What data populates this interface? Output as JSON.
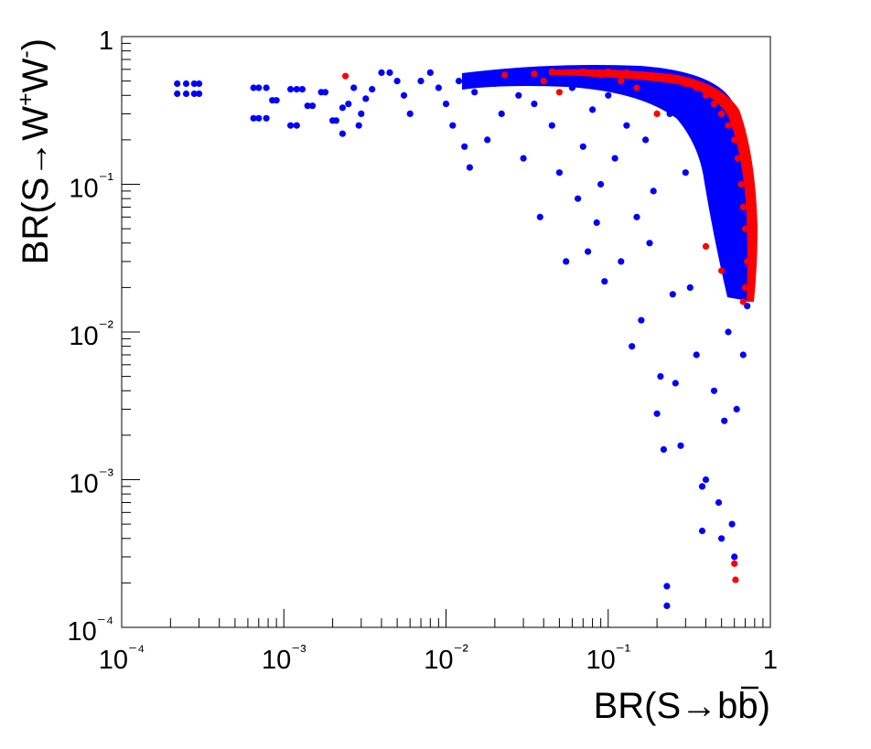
{
  "chart_data": {
    "type": "scatter",
    "xlabel": "BR(S→bb̄)",
    "ylabel": "BR(S→W⁺W⁻)",
    "x_scale": "log",
    "y_scale": "log",
    "xlim": [
      0.0001,
      1
    ],
    "ylim": [
      0.0001,
      1
    ],
    "x_ticks": [
      "10⁻⁴",
      "10⁻³",
      "10⁻²",
      "10⁻¹",
      "1"
    ],
    "y_ticks": [
      "10⁻⁴",
      "10⁻³",
      "10⁻²",
      "10⁻¹",
      "1"
    ],
    "grid": false,
    "colors": {
      "series_blue": "#0000ff",
      "series_red": "#ff0000"
    },
    "series": [
      {
        "color": "#0000ff",
        "points": [
          [
            0.00022,
            0.48
          ],
          [
            0.00025,
            0.48
          ],
          [
            0.00028,
            0.48
          ],
          [
            0.0003,
            0.48
          ],
          [
            0.00022,
            0.41
          ],
          [
            0.00025,
            0.41
          ],
          [
            0.00028,
            0.41
          ],
          [
            0.0003,
            0.41
          ],
          [
            0.00065,
            0.45
          ],
          [
            0.0007,
            0.45
          ],
          [
            0.00078,
            0.45
          ],
          [
            0.00065,
            0.28
          ],
          [
            0.0007,
            0.28
          ],
          [
            0.00078,
            0.28
          ],
          [
            0.00085,
            0.37
          ],
          [
            0.0009,
            0.37
          ],
          [
            0.0011,
            0.44
          ],
          [
            0.0012,
            0.44
          ],
          [
            0.0013,
            0.44
          ],
          [
            0.0011,
            0.25
          ],
          [
            0.0012,
            0.25
          ],
          [
            0.0014,
            0.34
          ],
          [
            0.0015,
            0.34
          ],
          [
            0.0017,
            0.42
          ],
          [
            0.0018,
            0.42
          ],
          [
            0.002,
            0.27
          ],
          [
            0.0021,
            0.27
          ],
          [
            0.0023,
            0.22
          ],
          [
            0.0023,
            0.33
          ],
          [
            0.0025,
            0.35
          ],
          [
            0.0027,
            0.45
          ],
          [
            0.0029,
            0.25
          ],
          [
            0.003,
            0.3
          ],
          [
            0.0032,
            0.38
          ],
          [
            0.0035,
            0.44
          ],
          [
            0.004,
            0.57
          ],
          [
            0.0045,
            0.57
          ],
          [
            0.005,
            0.5
          ],
          [
            0.0055,
            0.4
          ],
          [
            0.006,
            0.3
          ],
          [
            0.007,
            0.5
          ],
          [
            0.008,
            0.57
          ],
          [
            0.009,
            0.45
          ],
          [
            0.01,
            0.35
          ],
          [
            0.011,
            0.25
          ],
          [
            0.012,
            0.5
          ],
          [
            0.013,
            0.18
          ],
          [
            0.014,
            0.13
          ],
          [
            0.015,
            0.42
          ],
          [
            0.016,
            0.55
          ],
          [
            0.018,
            0.2
          ],
          [
            0.02,
            0.48
          ],
          [
            0.022,
            0.3
          ],
          [
            0.025,
            0.55
          ],
          [
            0.028,
            0.4
          ],
          [
            0.03,
            0.15
          ],
          [
            0.032,
            0.52
          ],
          [
            0.035,
            0.35
          ],
          [
            0.038,
            0.06
          ],
          [
            0.04,
            0.5
          ],
          [
            0.045,
            0.25
          ],
          [
            0.05,
            0.12
          ],
          [
            0.055,
            0.03
          ],
          [
            0.06,
            0.45
          ],
          [
            0.065,
            0.08
          ],
          [
            0.07,
            0.18
          ],
          [
            0.075,
            0.035
          ],
          [
            0.08,
            0.32
          ],
          [
            0.085,
            0.055
          ],
          [
            0.09,
            0.1
          ],
          [
            0.095,
            0.022
          ],
          [
            0.1,
            0.4
          ],
          [
            0.11,
            0.15
          ],
          [
            0.12,
            0.03
          ],
          [
            0.13,
            0.25
          ],
          [
            0.14,
            0.008
          ],
          [
            0.15,
            0.06
          ],
          [
            0.16,
            0.012
          ],
          [
            0.17,
            0.2
          ],
          [
            0.18,
            0.04
          ],
          [
            0.19,
            0.09
          ],
          [
            0.2,
            0.0028
          ],
          [
            0.21,
            0.005
          ],
          [
            0.22,
            0.0016
          ],
          [
            0.23,
            0.00019
          ],
          [
            0.23,
            0.00014
          ],
          [
            0.24,
            0.3
          ],
          [
            0.25,
            0.018
          ],
          [
            0.26,
            0.0045
          ],
          [
            0.28,
            0.0017
          ],
          [
            0.3,
            0.12
          ],
          [
            0.32,
            0.02
          ],
          [
            0.35,
            0.007
          ],
          [
            0.38,
            0.0009
          ],
          [
            0.38,
            0.00045
          ],
          [
            0.4,
            0.001
          ],
          [
            0.42,
            0.35
          ],
          [
            0.45,
            0.004
          ],
          [
            0.48,
            0.0007
          ],
          [
            0.5,
            0.0004
          ],
          [
            0.52,
            0.0025
          ],
          [
            0.55,
            0.01
          ],
          [
            0.58,
            0.0005
          ],
          [
            0.6,
            0.0003
          ],
          [
            0.62,
            0.003
          ],
          [
            0.65,
            0.02
          ],
          [
            0.68,
            0.007
          ],
          [
            0.7,
            0.05
          ],
          [
            0.72,
            0.015
          ]
        ]
      },
      {
        "color": "#ff0000",
        "points": [
          [
            0.0024,
            0.54
          ],
          [
            0.023,
            0.55
          ],
          [
            0.035,
            0.56
          ],
          [
            0.04,
            0.5
          ],
          [
            0.045,
            0.58
          ],
          [
            0.05,
            0.42
          ],
          [
            0.06,
            0.57
          ],
          [
            0.07,
            0.58
          ],
          [
            0.08,
            0.56
          ],
          [
            0.09,
            0.55
          ],
          [
            0.1,
            0.58
          ],
          [
            0.11,
            0.57
          ],
          [
            0.12,
            0.5
          ],
          [
            0.13,
            0.57
          ],
          [
            0.15,
            0.45
          ],
          [
            0.2,
            0.3
          ],
          [
            0.25,
            0.52
          ],
          [
            0.3,
            0.48
          ],
          [
            0.35,
            0.45
          ],
          [
            0.4,
            0.4
          ],
          [
            0.45,
            0.35
          ],
          [
            0.5,
            0.3
          ],
          [
            0.55,
            0.25
          ],
          [
            0.6,
            0.2
          ],
          [
            0.63,
            0.15
          ],
          [
            0.66,
            0.1
          ],
          [
            0.68,
            0.07
          ],
          [
            0.7,
            0.05
          ],
          [
            0.72,
            0.03
          ],
          [
            0.7,
            0.02
          ],
          [
            0.68,
            0.016
          ],
          [
            0.5,
            0.026
          ],
          [
            0.4,
            0.038
          ],
          [
            0.6,
            0.00027
          ],
          [
            0.61,
            0.00021
          ]
        ]
      }
    ]
  }
}
